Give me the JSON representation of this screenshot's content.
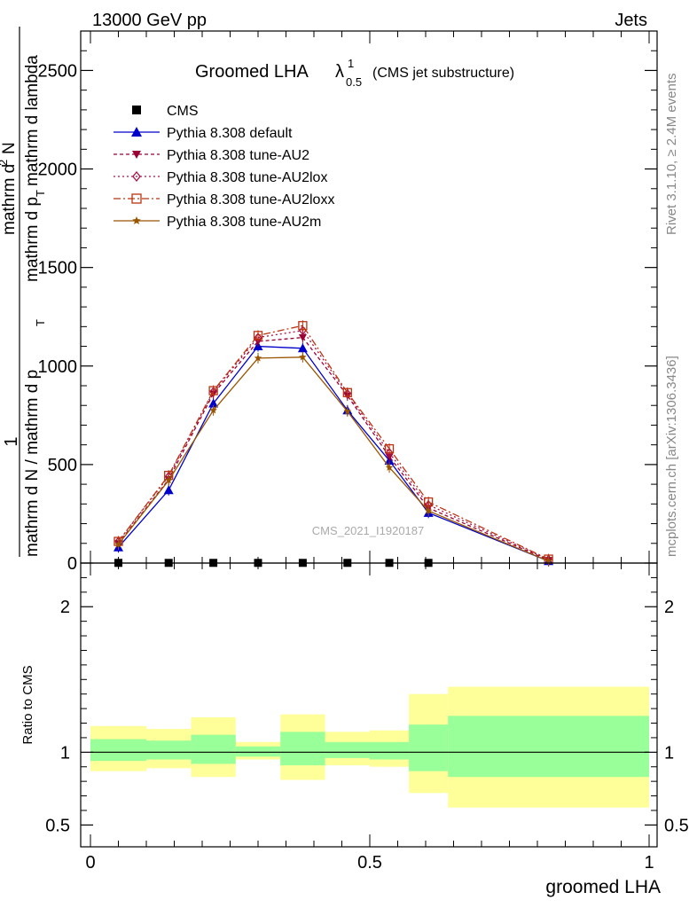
{
  "header": {
    "left": "13000 GeV pp",
    "right": "Jets"
  },
  "right_side": {
    "rivet": "Rivet 3.1.10, ≥ 2.4M events",
    "mcplots": "mcplots.cern.ch [arXiv:1306.3436]"
  },
  "chart_data": [
    {
      "type": "line",
      "title_main": "Groomed LHA",
      "title_lambda": "λ",
      "title_sup": "1",
      "title_sub": "0.5",
      "title_note": "(CMS jet substructure)",
      "ylabel_num": "1",
      "ylabel_den": "mathrm d N / mathrm d p",
      "ylabel_den_sub": "T",
      "ylabel_right_num": "mathrm d",
      "ylabel_right_sup": "2",
      "ylabel_right_num2": "N",
      "ylabel_right_den": "mathrm d p",
      "ylabel_right_den_sub": "T",
      "ylabel_right_den2": "mathrm d lambda",
      "watermark": "CMS_2021_I1920187",
      "xlim": [
        0,
        1
      ],
      "ylim": [
        0,
        2700
      ],
      "y_ticks": [
        0,
        500,
        1000,
        1500,
        2000,
        2500
      ],
      "y_tick_labels": [
        "0",
        "500",
        "1000",
        "1500",
        "2000",
        "2500"
      ],
      "legend_position": "top-left",
      "series": [
        {
          "name": "CMS",
          "color": "#000000",
          "marker": "square",
          "x": [
            0.05,
            0.14,
            0.22,
            0.3,
            0.38,
            0.46,
            0.535,
            0.605
          ],
          "y": [
            1,
            1,
            1,
            1,
            1,
            1,
            1,
            1
          ]
        },
        {
          "name": "Pythia 8.308 default",
          "color": "#0000cc",
          "marker": "triangle-up",
          "dash": "",
          "x": [
            0.05,
            0.14,
            0.22,
            0.3,
            0.38,
            0.46,
            0.535,
            0.605,
            0.82
          ],
          "y": [
            80,
            370,
            810,
            1100,
            1090,
            775,
            520,
            255,
            10
          ]
        },
        {
          "name": "Pythia 8.308 tune-AU2",
          "color": "#990033",
          "marker": "triangle-down",
          "dash": "4,3",
          "x": [
            0.05,
            0.14,
            0.22,
            0.3,
            0.38,
            0.46,
            0.535,
            0.605,
            0.82
          ],
          "y": [
            100,
            425,
            860,
            1125,
            1145,
            850,
            540,
            280,
            15
          ]
        },
        {
          "name": "Pythia 8.308 tune-AU2lox",
          "color": "#aa1144",
          "marker": "diamond-open",
          "dash": "2,3",
          "x": [
            0.05,
            0.14,
            0.22,
            0.3,
            0.38,
            0.46,
            0.535,
            0.605,
            0.82
          ],
          "y": [
            110,
            440,
            870,
            1145,
            1180,
            860,
            560,
            295,
            18
          ]
        },
        {
          "name": "Pythia 8.308 tune-AU2loxx",
          "color": "#bb3311",
          "marker": "square-open",
          "dash": "8,3,2,3",
          "x": [
            0.05,
            0.14,
            0.22,
            0.3,
            0.38,
            0.46,
            0.535,
            0.605,
            0.82
          ],
          "y": [
            110,
            445,
            875,
            1155,
            1205,
            865,
            580,
            310,
            20
          ]
        },
        {
          "name": "Pythia 8.308 tune-AU2m",
          "color": "#995500",
          "marker": "star",
          "dash": "",
          "x": [
            0.05,
            0.14,
            0.22,
            0.3,
            0.38,
            0.46,
            0.535,
            0.605,
            0.82
          ],
          "y": [
            95,
            420,
            775,
            1040,
            1045,
            770,
            485,
            265,
            10
          ]
        }
      ]
    },
    {
      "type": "band",
      "ylabel": "Ratio to CMS",
      "xlabel": "groomed LHA",
      "xlim": [
        0,
        1
      ],
      "ylim": [
        0.35,
        2.3
      ],
      "y_ticks": [
        0.5,
        1,
        2
      ],
      "y_tick_labels": [
        "0.5",
        "1",
        "2"
      ],
      "x_ticks": [
        0,
        0.5,
        1
      ],
      "x_tick_labels": [
        "0",
        "0.5",
        "1"
      ],
      "reference": 1,
      "bins": [
        {
          "x0": 0.0,
          "x1": 0.1,
          "yellow": [
            0.87,
            1.18
          ],
          "green": [
            0.94,
            1.09
          ]
        },
        {
          "x0": 0.1,
          "x1": 0.18,
          "yellow": [
            0.89,
            1.16
          ],
          "green": [
            0.95,
            1.08
          ]
        },
        {
          "x0": 0.18,
          "x1": 0.26,
          "yellow": [
            0.83,
            1.24
          ],
          "green": [
            0.92,
            1.12
          ]
        },
        {
          "x0": 0.26,
          "x1": 0.34,
          "yellow": [
            0.95,
            1.07
          ],
          "green": [
            0.97,
            1.04
          ]
        },
        {
          "x0": 0.34,
          "x1": 0.42,
          "yellow": [
            0.81,
            1.26
          ],
          "green": [
            0.91,
            1.14
          ]
        },
        {
          "x0": 0.42,
          "x1": 0.5,
          "yellow": [
            0.91,
            1.14
          ],
          "green": [
            0.96,
            1.07
          ]
        },
        {
          "x0": 0.5,
          "x1": 0.57,
          "yellow": [
            0.9,
            1.15
          ],
          "green": [
            0.95,
            1.07
          ]
        },
        {
          "x0": 0.57,
          "x1": 0.64,
          "yellow": [
            0.72,
            1.4
          ],
          "green": [
            0.87,
            1.19
          ]
        },
        {
          "x0": 0.64,
          "x1": 1.0,
          "yellow": [
            0.62,
            1.45
          ],
          "green": [
            0.83,
            1.25
          ]
        }
      ]
    }
  ]
}
